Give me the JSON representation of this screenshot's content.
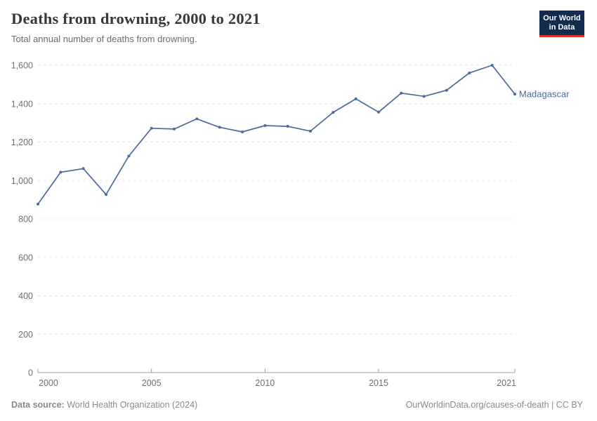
{
  "header": {
    "title": "Deaths from drowning, 2000 to 2021",
    "subtitle": "Total annual number of deaths from drowning.",
    "logo": {
      "line1": "Our World",
      "line2": "in Data"
    }
  },
  "colors": {
    "line": "#4C6A9C",
    "logo_bg": "#122B4E",
    "logo_accent": "#D8352A",
    "gridline": "#e2e2e2",
    "axis": "#9c9c9c",
    "tick_label": "#6f6f6f"
  },
  "chart_data": {
    "type": "line",
    "title": "Deaths from drowning, 2000 to 2021",
    "xlabel": "",
    "ylabel": "",
    "xlim": [
      2000,
      2021
    ],
    "ylim": [
      0,
      1600
    ],
    "x_ticks": [
      2000,
      2005,
      2010,
      2015,
      2021
    ],
    "y_ticks": [
      0,
      200,
      400,
      600,
      800,
      1000,
      1200,
      1400,
      1600
    ],
    "grid": "horizontal-dashed",
    "legend_position": "end-of-line-label",
    "series": [
      {
        "name": "Madagascar",
        "color": "#4C6A9C",
        "x": [
          2000,
          2001,
          2002,
          2003,
          2004,
          2005,
          2006,
          2007,
          2008,
          2009,
          2010,
          2011,
          2012,
          2013,
          2014,
          2015,
          2016,
          2017,
          2018,
          2019,
          2020,
          2021
        ],
        "values": [
          877,
          1043,
          1062,
          927,
          1127,
          1272,
          1268,
          1321,
          1277,
          1253,
          1286,
          1282,
          1257,
          1355,
          1425,
          1356,
          1455,
          1438,
          1470,
          1560,
          1600,
          1450
        ]
      }
    ]
  },
  "footer": {
    "datasource_label": "Data source:",
    "datasource_value": "World Health Organization (2024)",
    "attribution": "OurWorldinData.org/causes-of-death | CC BY"
  }
}
